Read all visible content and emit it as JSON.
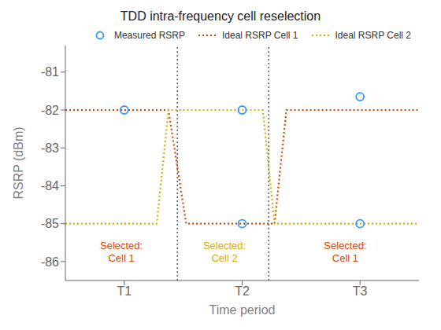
{
  "chart_data": {
    "type": "line",
    "title": "TDD intra-frequency cell reselection",
    "xlabel": "Time period",
    "ylabel": "RSRP (dBm)",
    "xlim": [
      0.0,
      6.0
    ],
    "xticks": [
      {
        "value": 1,
        "label": "T1"
      },
      {
        "value": 3,
        "label": "T2"
      },
      {
        "value": 5,
        "label": "T3"
      }
    ],
    "ylim": [
      -86.5,
      -80.3
    ],
    "yticks": [
      -86,
      -85,
      -84,
      -83,
      -82,
      -81
    ],
    "legend": "upper right",
    "series": [
      {
        "name": "Measured RSRP",
        "type": "scatter",
        "color": "#3399FF",
        "marker": "circle",
        "x": [
          1.0,
          3.0,
          3.0,
          5.0,
          5.0
        ],
        "values": [
          -82.0,
          -82.0,
          -85.0,
          -81.65,
          -85.0
        ]
      },
      {
        "name": "Ideal RSRP Cell 1",
        "type": "line",
        "color": "#DD4400",
        "line_style": "dotted",
        "x": [
          0.0,
          1.75,
          2.05,
          3.55,
          3.75,
          6.0
        ],
        "values": [
          -82,
          -82,
          -85,
          -85,
          -82,
          -82
        ]
      },
      {
        "name": "Ideal RSRP Cell 2",
        "type": "line",
        "color": "#DDAA00",
        "line_style": "dotted",
        "x": [
          0.0,
          1.55,
          1.75,
          3.35,
          3.55,
          6.0
        ],
        "values": [
          -85,
          -85,
          -82,
          -82,
          -85,
          -85
        ]
      }
    ],
    "vlines": {
      "x": [
        1.9,
        3.45
      ],
      "color": "#333333",
      "line_style": "dotted"
    },
    "annotations": [
      {
        "x": 0.95,
        "y": -85.4,
        "text": "Selected:\nCell 1",
        "color": "#DD4400"
      },
      {
        "x": 2.7,
        "y": -85.4,
        "text": "Selected:\nCell 2",
        "color": "#DDAA00"
      },
      {
        "x": 4.75,
        "y": -85.4,
        "text": "Selected:\nCell 1",
        "color": "#DD4400"
      }
    ]
  }
}
